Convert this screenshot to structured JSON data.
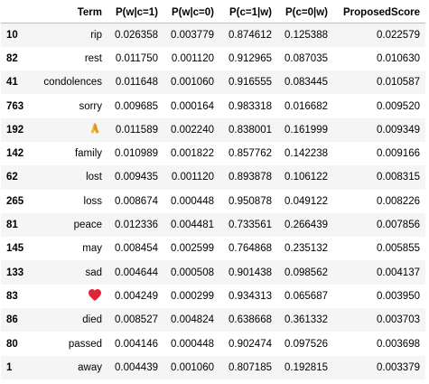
{
  "table": {
    "headers": [
      "",
      "Term",
      "P(w|c=1)",
      "P(w|c=0)",
      "P(c=1|w)",
      "P(c=0|w)",
      "ProposedScore"
    ],
    "rows": [
      {
        "index": "10",
        "term": "rip",
        "pw_c1": "0.026358",
        "pw_c0": "0.003779",
        "pc1_w": "0.874612",
        "pc0_w": "0.125388",
        "score": "0.022579"
      },
      {
        "index": "82",
        "term": "rest",
        "pw_c1": "0.011750",
        "pw_c0": "0.001120",
        "pc1_w": "0.912965",
        "pc0_w": "0.087035",
        "score": "0.010630"
      },
      {
        "index": "41",
        "term": "condolences",
        "pw_c1": "0.011648",
        "pw_c0": "0.001060",
        "pc1_w": "0.916555",
        "pc0_w": "0.083445",
        "score": "0.010587"
      },
      {
        "index": "763",
        "term": "sorry",
        "pw_c1": "0.009685",
        "pw_c0": "0.000164",
        "pc1_w": "0.983318",
        "pc0_w": "0.016682",
        "score": "0.009520"
      },
      {
        "index": "192",
        "term": "",
        "term_icon": "folded-hands-emoji",
        "pw_c1": "0.011589",
        "pw_c0": "0.002240",
        "pc1_w": "0.838001",
        "pc0_w": "0.161999",
        "score": "0.009349"
      },
      {
        "index": "142",
        "term": "family",
        "pw_c1": "0.010989",
        "pw_c0": "0.001822",
        "pc1_w": "0.857762",
        "pc0_w": "0.142238",
        "score": "0.009166"
      },
      {
        "index": "62",
        "term": "lost",
        "pw_c1": "0.009435",
        "pw_c0": "0.001120",
        "pc1_w": "0.893878",
        "pc0_w": "0.106122",
        "score": "0.008315"
      },
      {
        "index": "265",
        "term": "loss",
        "pw_c1": "0.008674",
        "pw_c0": "0.000448",
        "pc1_w": "0.950878",
        "pc0_w": "0.049122",
        "score": "0.008226"
      },
      {
        "index": "81",
        "term": "peace",
        "pw_c1": "0.012336",
        "pw_c0": "0.004481",
        "pc1_w": "0.733561",
        "pc0_w": "0.266439",
        "score": "0.007856"
      },
      {
        "index": "145",
        "term": "may",
        "pw_c1": "0.008454",
        "pw_c0": "0.002599",
        "pc1_w": "0.764868",
        "pc0_w": "0.235132",
        "score": "0.005855"
      },
      {
        "index": "133",
        "term": "sad",
        "pw_c1": "0.004644",
        "pw_c0": "0.000508",
        "pc1_w": "0.901438",
        "pc0_w": "0.098562",
        "score": "0.004137"
      },
      {
        "index": "83",
        "term": "",
        "term_icon": "red-heart-emoji",
        "pw_c1": "0.004249",
        "pw_c0": "0.000299",
        "pc1_w": "0.934313",
        "pc0_w": "0.065687",
        "score": "0.003950"
      },
      {
        "index": "86",
        "term": "died",
        "pw_c1": "0.008527",
        "pw_c0": "0.004824",
        "pc1_w": "0.638668",
        "pc0_w": "0.361332",
        "score": "0.003703"
      },
      {
        "index": "80",
        "term": "passed",
        "pw_c1": "0.004146",
        "pw_c0": "0.000448",
        "pc1_w": "0.902474",
        "pc0_w": "0.097526",
        "score": "0.003698"
      },
      {
        "index": "1",
        "term": "away",
        "pw_c1": "0.004439",
        "pw_c0": "0.001060",
        "pc1_w": "0.807185",
        "pc0_w": "0.192815",
        "score": "0.003379"
      }
    ]
  },
  "colors": {
    "stripe": "#f5f5f5",
    "heart": "#e0243a",
    "hands": "#f3b43a"
  }
}
